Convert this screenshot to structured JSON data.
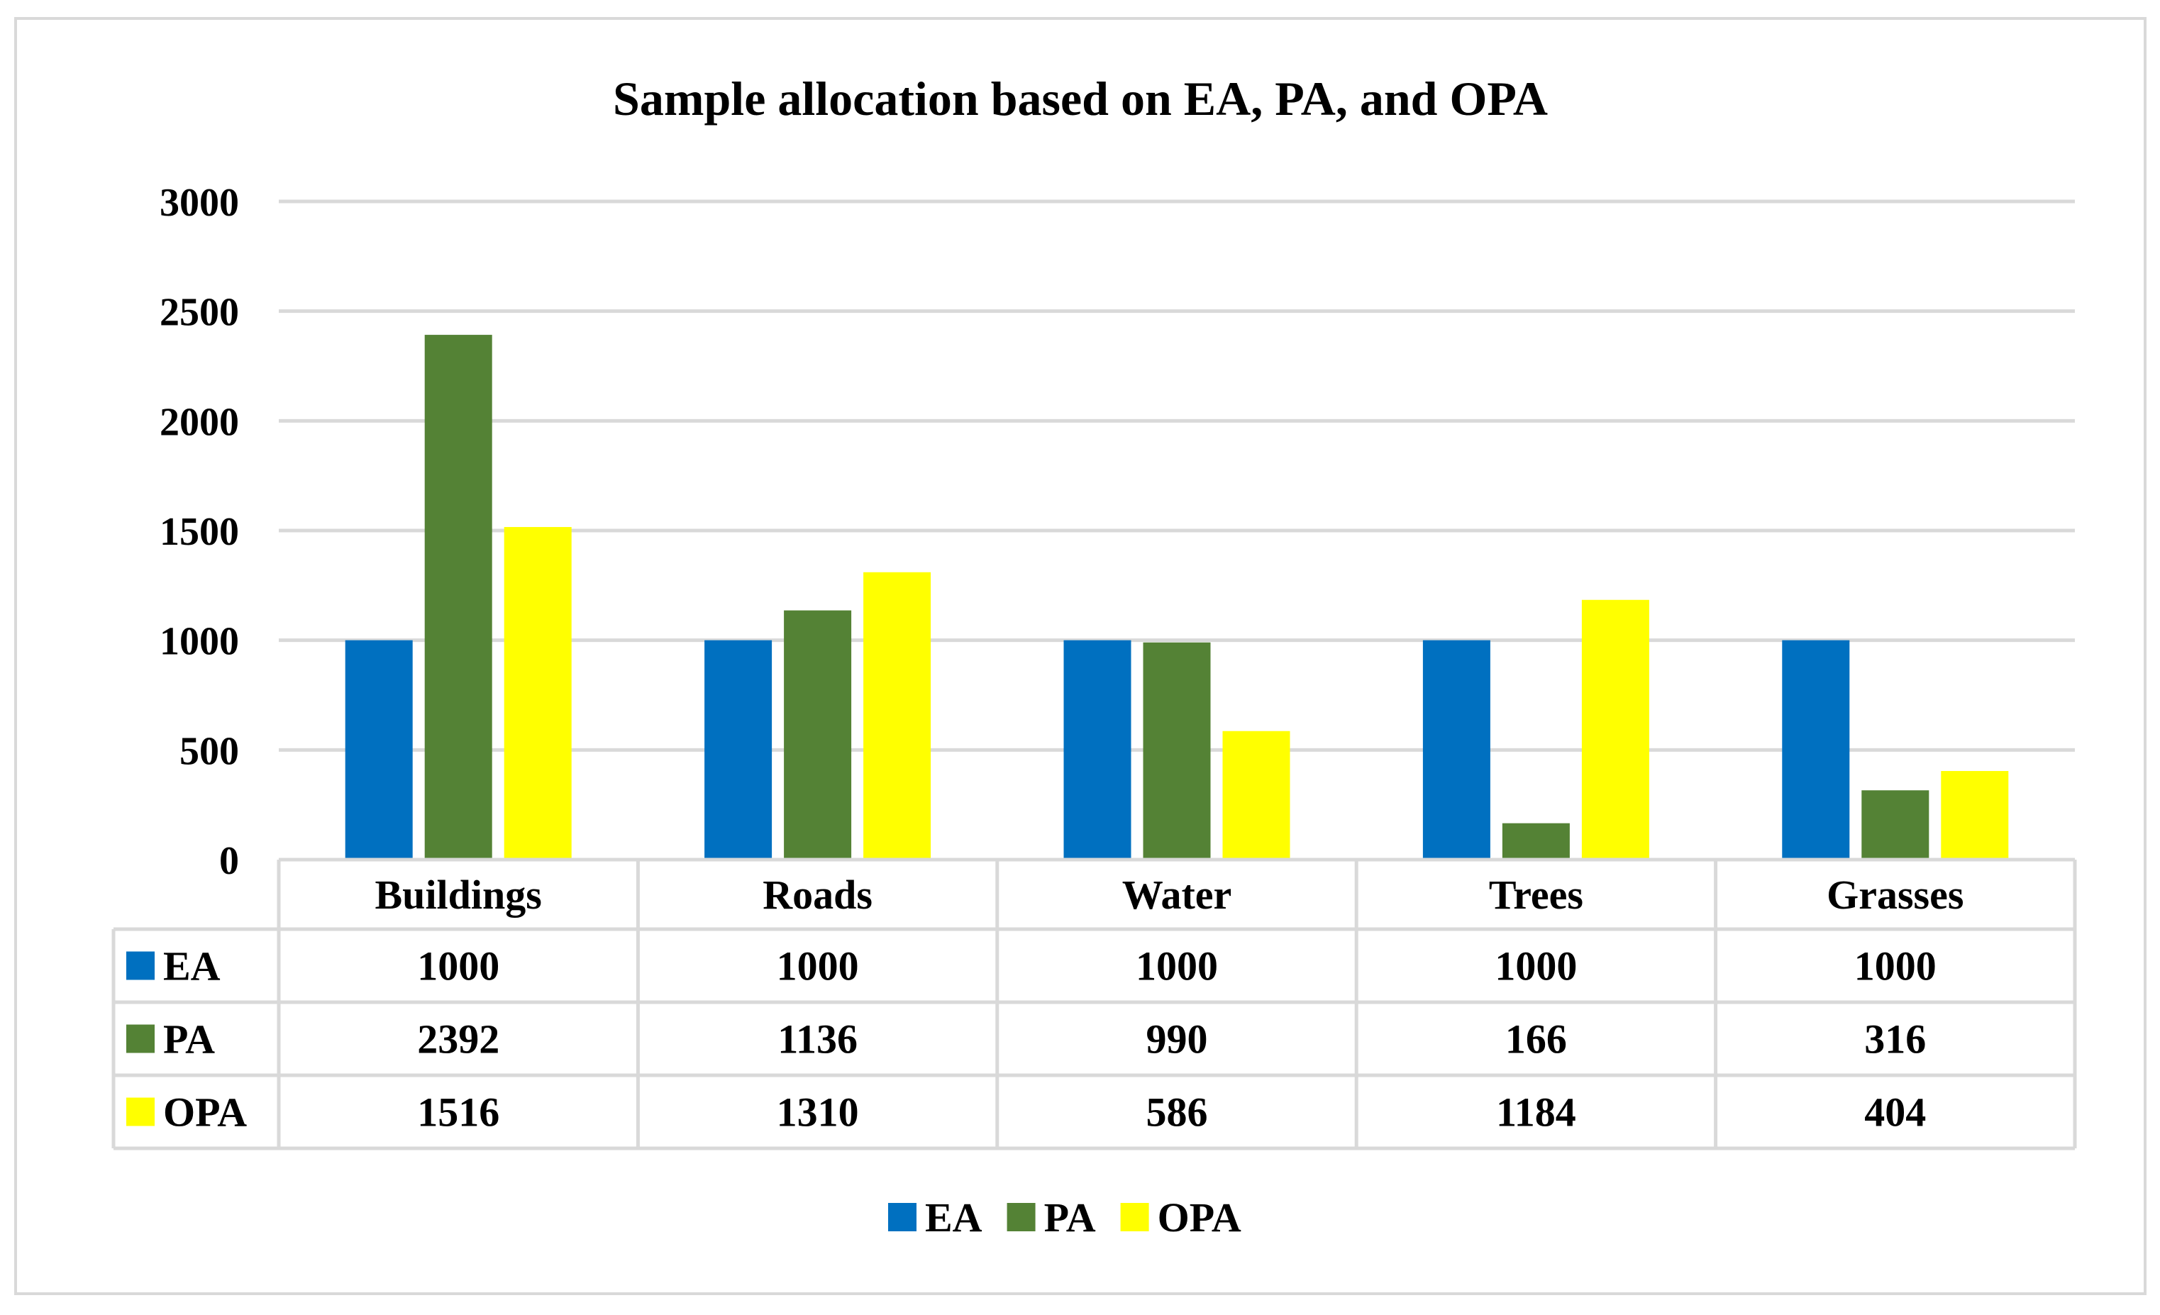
{
  "chart_data": {
    "type": "bar",
    "title": "Sample allocation based on EA, PA, and OPA",
    "categories": [
      "Buildings",
      "Roads",
      "Water",
      "Trees",
      "Grasses"
    ],
    "series": [
      {
        "name": "EA",
        "color": "#0070C0",
        "values": [
          1000,
          1000,
          1000,
          1000,
          1000
        ]
      },
      {
        "name": "PA",
        "color": "#548235",
        "values": [
          2392,
          1136,
          990,
          166,
          316
        ]
      },
      {
        "name": "OPA",
        "color": "#FFFF00",
        "values": [
          1516,
          1310,
          586,
          1184,
          404
        ]
      }
    ],
    "ylim": [
      0,
      3000
    ],
    "yticks": [
      0,
      500,
      1000,
      1500,
      2000,
      2500,
      3000
    ],
    "ytick_labels": [
      "0",
      "500",
      "1000",
      "1500",
      "2000",
      "2500",
      "3000"
    ],
    "xlabel": "",
    "ylabel": "",
    "grid": true,
    "data_table": true,
    "legend_position": "bottom"
  }
}
